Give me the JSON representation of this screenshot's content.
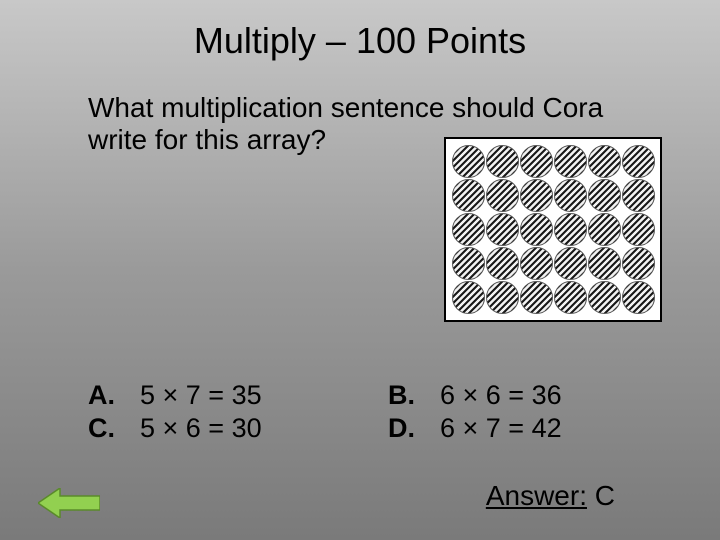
{
  "title": "Multiply – 100 Points",
  "question": "What multiplication sentence should Cora write for this array?",
  "array": {
    "rows": 5,
    "cols": 6,
    "circle_size": 33,
    "bg_color": "#ffffff",
    "border_color": "#000000",
    "stripe_dark": "#1a1a1a",
    "stripe_light": "#f2f2f2"
  },
  "choices": {
    "A": {
      "label": "A.",
      "text": "5 × 7 = 35"
    },
    "B": {
      "label": "B.",
      "text": "6 × 6 = 36"
    },
    "C": {
      "label": "C.",
      "text": "5 × 6 = 30"
    },
    "D": {
      "label": "D.",
      "text": "6 × 7 = 42"
    }
  },
  "answer_label": "Answer:",
  "answer_value": "C",
  "arrow": {
    "fill": "#92d050",
    "stroke": "#5a8a2a"
  },
  "slide_bg_top": "#c8c8c8",
  "slide_bg_mid": "#9a9a9a",
  "slide_bg_bottom": "#7a7a7a",
  "title_fontsize": 36,
  "body_fontsize": 28
}
